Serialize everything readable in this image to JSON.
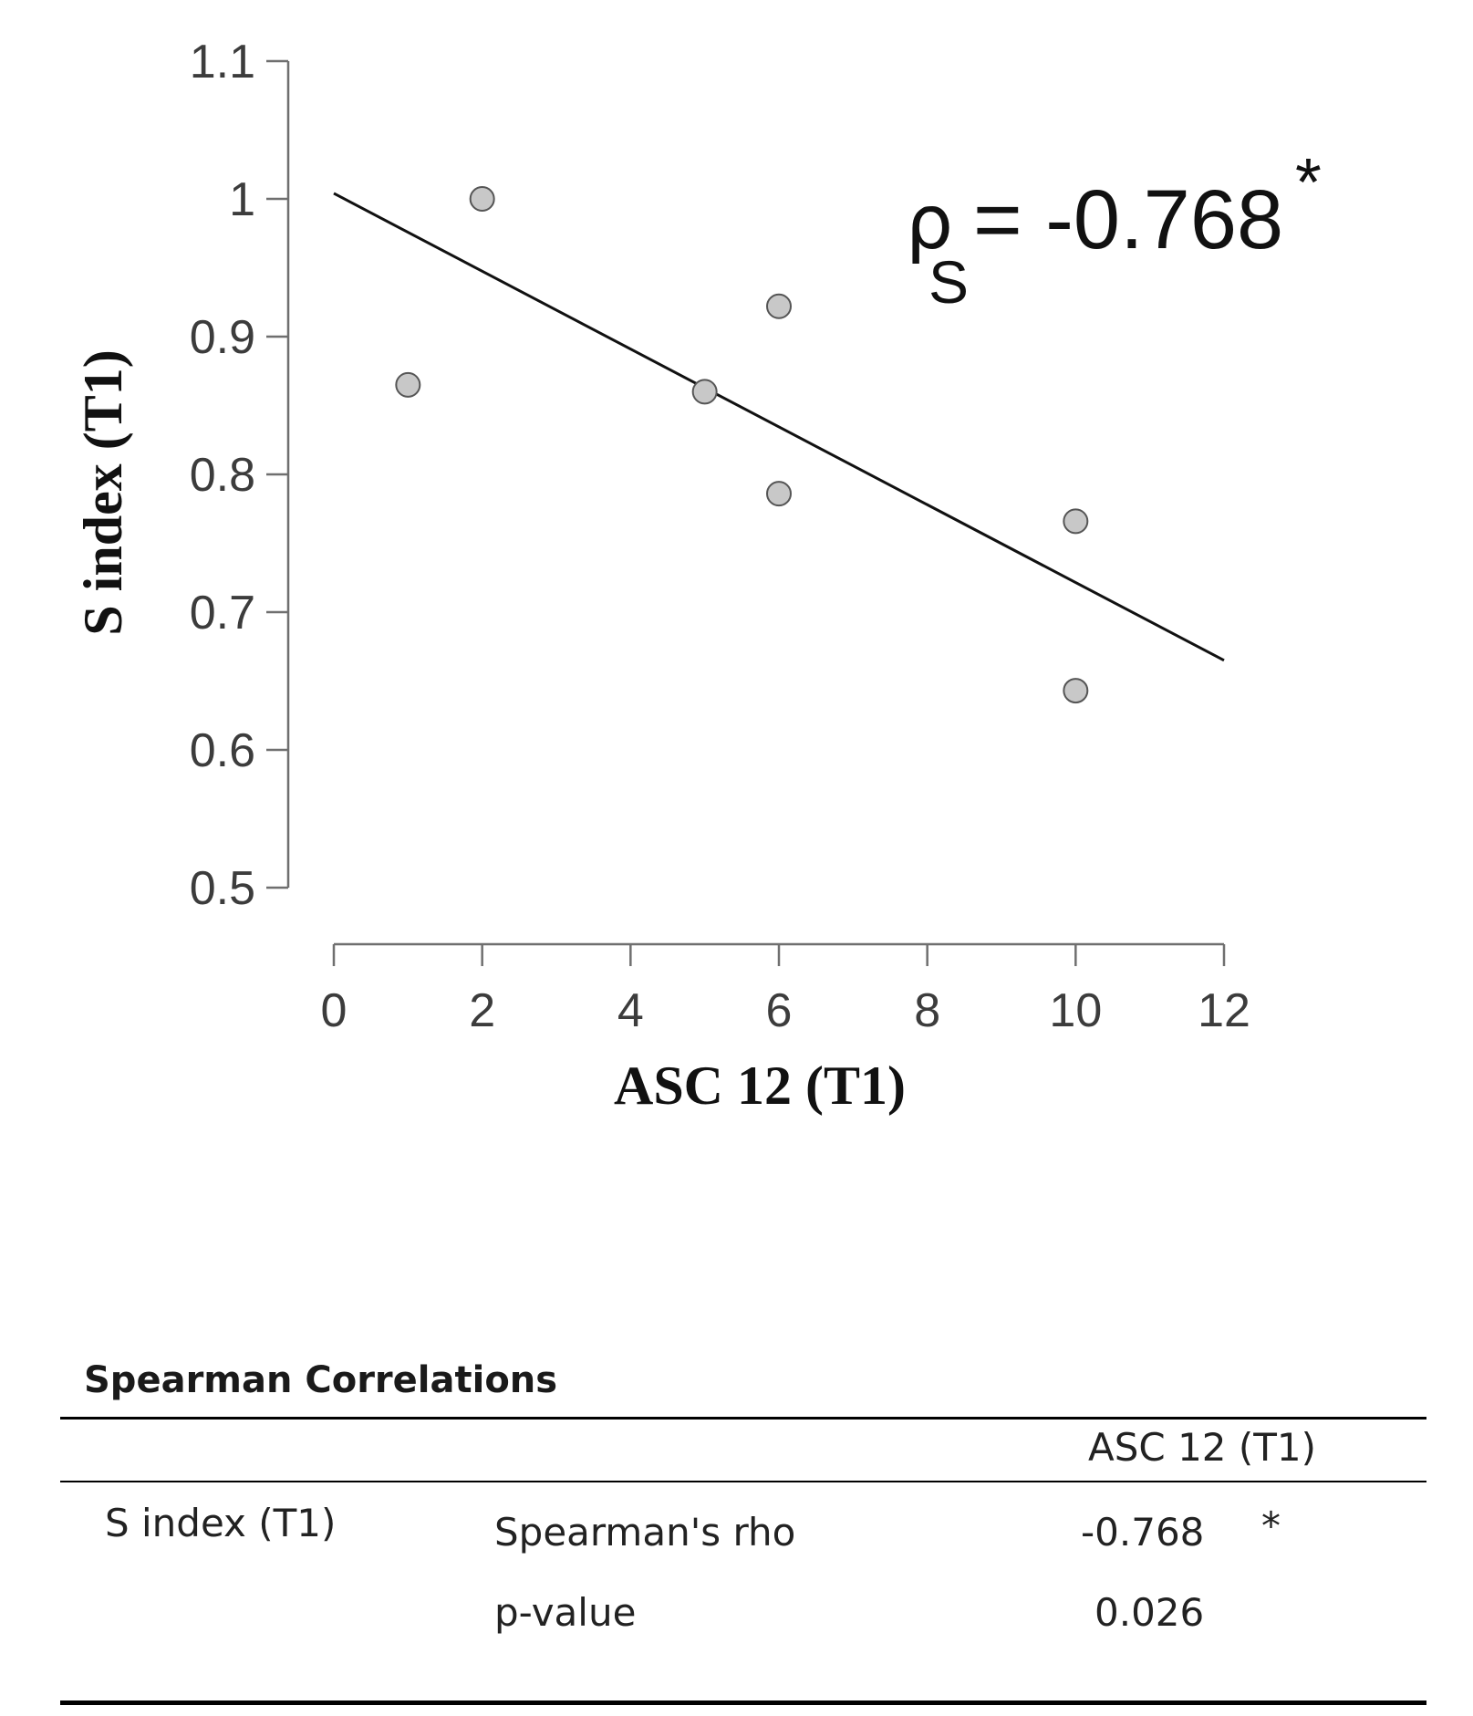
{
  "chart_data": {
    "type": "scatter",
    "xlabel": "ASC 12 (T1)",
    "ylabel": "S index (T1)",
    "xlim": [
      0,
      12
    ],
    "ylim": [
      0.5,
      1.1
    ],
    "x_ticks": [
      "0",
      "2",
      "4",
      "6",
      "8",
      "10",
      "12"
    ],
    "y_ticks": [
      "1.1",
      "1",
      "0.9",
      "0.8",
      "0.7",
      "0.6",
      "0.5"
    ],
    "points": [
      {
        "x": 1,
        "y": 0.865
      },
      {
        "x": 2,
        "y": 1.0
      },
      {
        "x": 5,
        "y": 0.86
      },
      {
        "x": 6,
        "y": 0.922
      },
      {
        "x": 6,
        "y": 0.786
      },
      {
        "x": 10,
        "y": 0.766
      },
      {
        "x": 10,
        "y": 0.643
      }
    ],
    "trend_line": {
      "x": [
        0,
        12
      ],
      "y": [
        1.004,
        0.665
      ]
    },
    "annotation": {
      "symbol": "ρ",
      "subscript": "S",
      "text": "= -0.768",
      "mark": "*"
    },
    "grid": false,
    "colors": {
      "points": "#c8c8c8",
      "point_edge": "#555555",
      "line": "#111111"
    }
  },
  "table": {
    "title": "Spearman Correlations",
    "column_header": "ASC 12 (T1)",
    "row_label": "S index (T1)",
    "rows": [
      {
        "stat": "Spearman's rho",
        "value": "-0.768",
        "flag": "*"
      },
      {
        "stat": "p-value",
        "value": "0.026",
        "flag": ""
      }
    ]
  }
}
